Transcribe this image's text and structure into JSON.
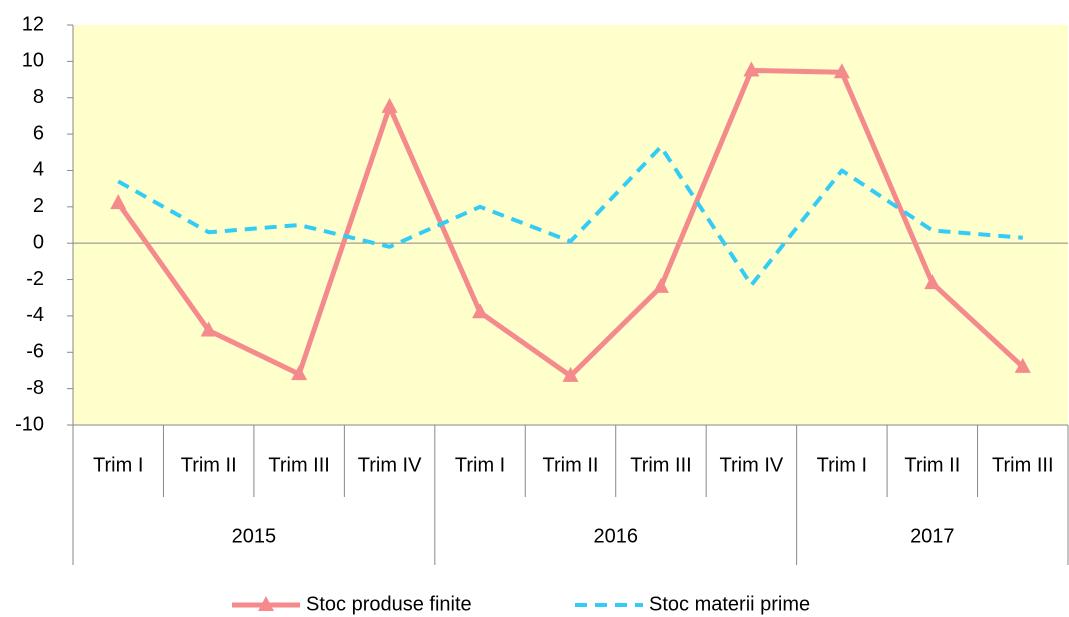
{
  "chart_data": {
    "type": "line",
    "categories": [
      "Trim I",
      "Trim II",
      "Trim III",
      "Trim IV",
      "Trim I",
      "Trim II",
      "Trim III",
      "Trim IV",
      "Trim I",
      "Trim II",
      "Trim III"
    ],
    "category_groups": [
      {
        "label": "2015",
        "span": 4
      },
      {
        "label": "2016",
        "span": 4
      },
      {
        "label": "2017",
        "span": 3
      }
    ],
    "series": [
      {
        "name": "Stoc produse finite",
        "color": "#f48a8c",
        "marker": "triangle",
        "dash": false,
        "values": [
          2.2,
          -4.8,
          -7.2,
          7.5,
          -3.8,
          -7.3,
          -2.4,
          9.5,
          9.4,
          -2.2,
          -6.8
        ]
      },
      {
        "name": "Stoc materii prime",
        "color": "#33ccf5",
        "marker": "none",
        "dash": true,
        "values": [
          3.4,
          0.6,
          1.0,
          -0.2,
          2.0,
          0.1,
          5.3,
          -2.3,
          4.0,
          0.7,
          0.3
        ]
      }
    ],
    "ylim": [
      -10,
      12
    ],
    "yticks": [
      -10,
      -8,
      -6,
      -4,
      -2,
      0,
      2,
      4,
      6,
      8,
      10,
      12
    ],
    "legend": "bottom",
    "plot_background": "#ffffcc"
  }
}
